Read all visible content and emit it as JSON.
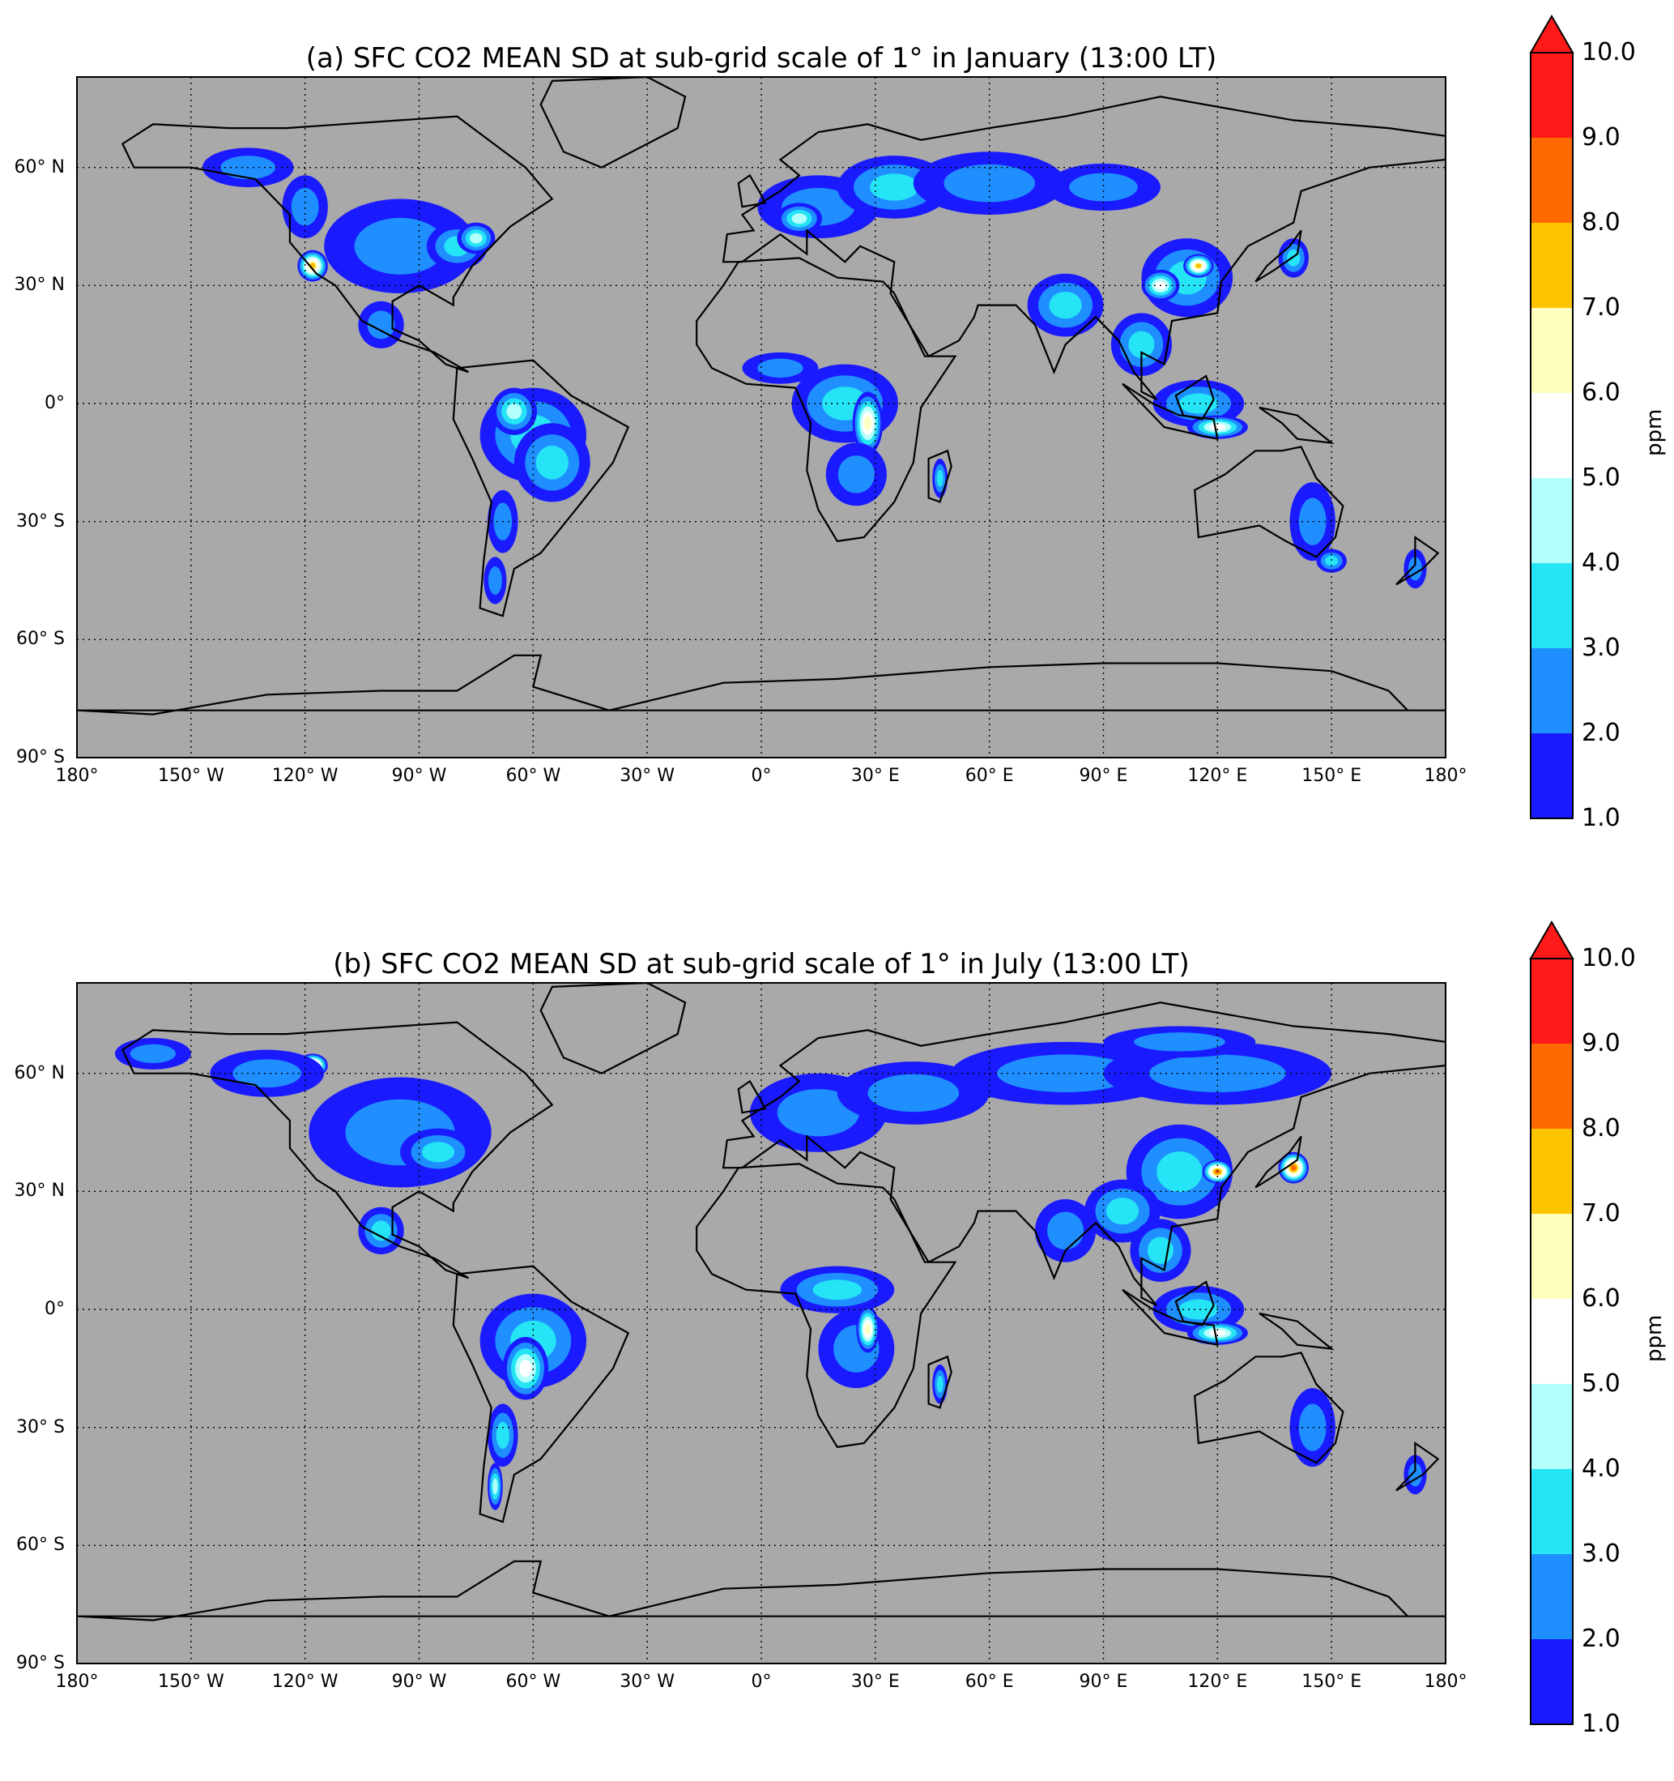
{
  "panels": [
    {
      "id": "a",
      "title": "(a) SFC CO2 MEAN SD at sub-grid scale of 1° in January (13:00 LT)"
    },
    {
      "id": "b",
      "title": "(b) SFC CO2 MEAN SD at sub-grid scale of 1° in July (13:00 LT)"
    }
  ],
  "axes": {
    "lat_ticks": [
      "60° N",
      "30° N",
      "0°",
      "30° S",
      "60° S",
      "90° S"
    ],
    "lon_ticks": [
      "180°",
      "150° W",
      "120° W",
      "90° W",
      "60° W",
      "30° W",
      "0°",
      "30° E",
      "60° E",
      "90° E",
      "120° E",
      "150° E",
      "180°"
    ]
  },
  "colorbar": {
    "unit": "ppm",
    "levels": [
      "1.0",
      "2.0",
      "3.0",
      "4.0",
      "5.0",
      "6.0",
      "7.0",
      "8.0",
      "9.0",
      "10.0"
    ],
    "colors": [
      "#1a1aff",
      "#1f8fff",
      "#25e4f5",
      "#b3fffb",
      "#ffffff",
      "#ffffc0",
      "#ffc400",
      "#ff6a00",
      "#ff1a1a"
    ],
    "extend": "max",
    "extend_color": "#ff1a1a"
  },
  "map_colors": {
    "background": "#a9a9a9",
    "coastline": "#000000",
    "grid": "#000000"
  }
}
